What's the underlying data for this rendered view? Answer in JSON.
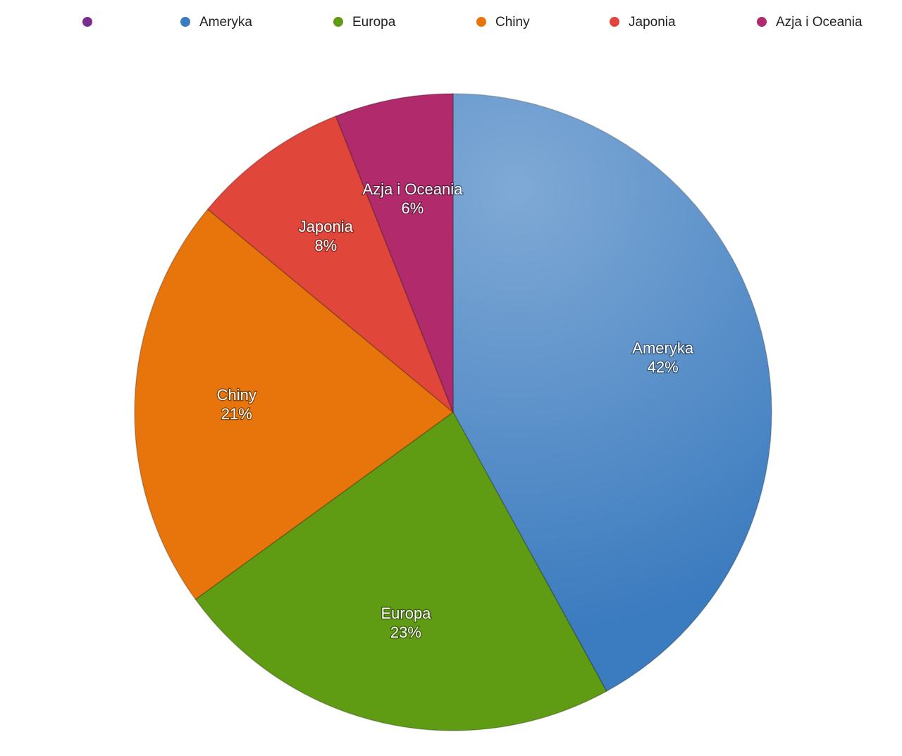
{
  "chart_data": {
    "type": "pie",
    "categories": [
      null,
      "Ameryka",
      "Europa",
      "Chiny",
      "Japonia",
      "Azja i Oceania"
    ],
    "values": [
      0,
      42,
      23,
      21,
      8,
      6
    ],
    "value_labels": [
      null,
      "42%",
      "23%",
      "21%",
      "8%",
      "6%"
    ],
    "colors": [
      "#7b2d8e",
      "#3b7bbf",
      "#5f9c13",
      "#e8750c",
      "#e0463a",
      "#b02a6c"
    ],
    "legend": "top"
  }
}
